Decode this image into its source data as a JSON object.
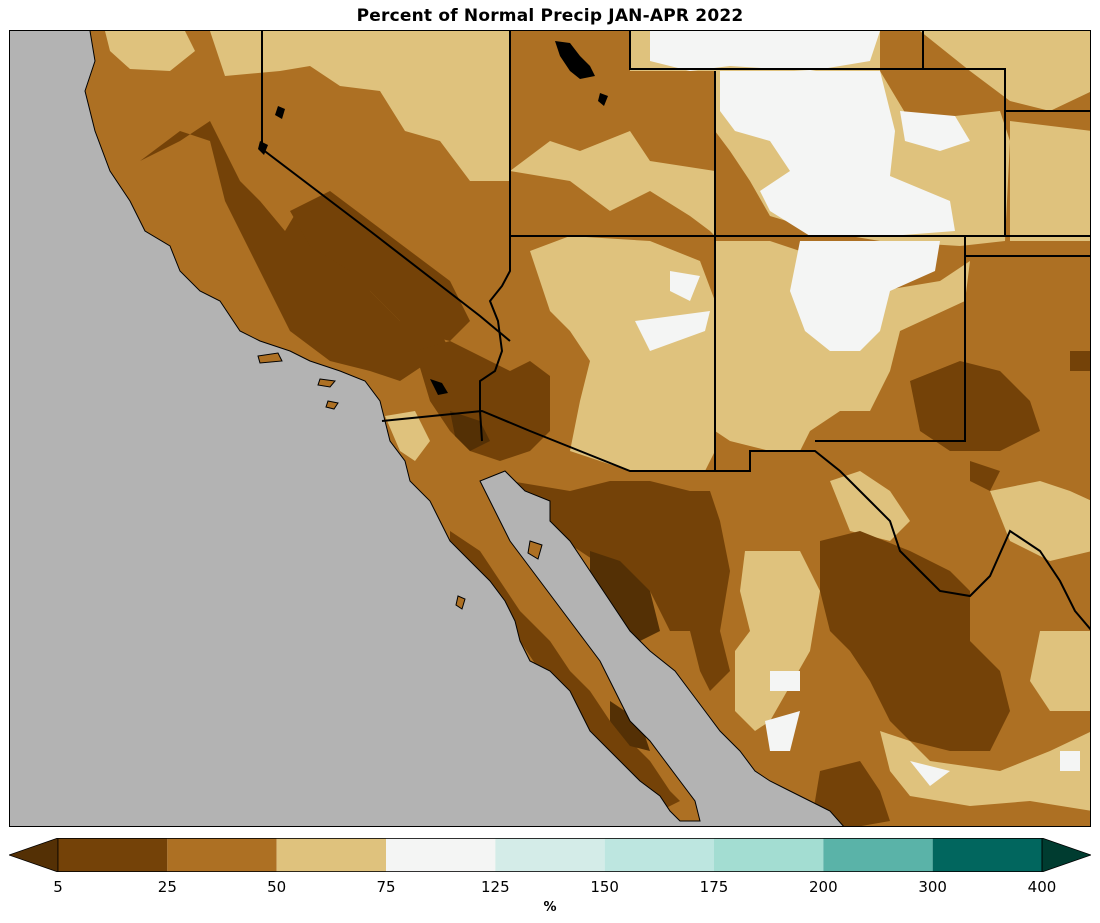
{
  "title": "Percent of Normal Precip JAN-APR 2022",
  "colorbar": {
    "unit": "%",
    "ticks": [
      "5",
      "25",
      "50",
      "75",
      "125",
      "150",
      "175",
      "200",
      "300",
      "400"
    ],
    "bins": [
      {
        "range": "<5",
        "color": "#543005"
      },
      {
        "range": "5-25",
        "color": "#744208"
      },
      {
        "range": "25-50",
        "color": "#ad7023"
      },
      {
        "range": "50-75",
        "color": "#dfc27d"
      },
      {
        "range": "75-125",
        "color": "#f4f5f4"
      },
      {
        "range": "125-150",
        "color": "#d4ece8"
      },
      {
        "range": "150-175",
        "color": "#bde6e0"
      },
      {
        "range": "175-200",
        "color": "#a3ddd2"
      },
      {
        "range": "200-300",
        "color": "#5ab3a8"
      },
      {
        "range": "300-400",
        "color": "#01665e"
      },
      {
        "range": ">400",
        "color": "#003c30"
      }
    ]
  },
  "colors": {
    "ocean": "#b3b3b3",
    "land_dark": "#744208",
    "land_mid": "#ad7023",
    "land_light": "#dfc27d",
    "land_white": "#f4f5f4",
    "lake": "#000000",
    "border": "#000000"
  }
}
